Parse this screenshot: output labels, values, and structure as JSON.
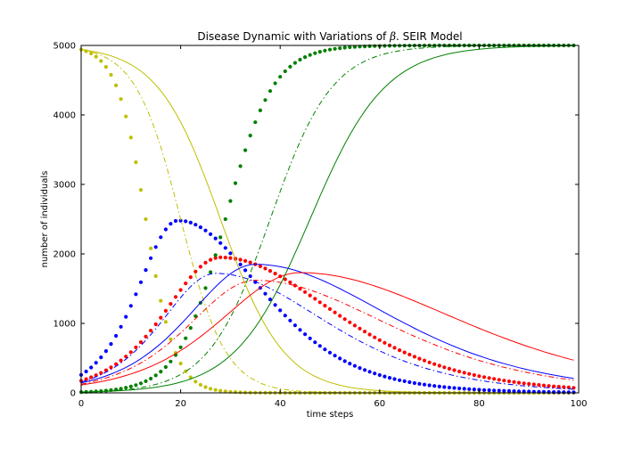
{
  "chart_data": {
    "type": "line",
    "title": "Disease Dynamic with Variations of",
    "title_symbol": "β",
    "title_suffix": ". SEIR Model",
    "xlabel": "time steps",
    "ylabel": "number of individuals",
    "xlim": [
      0,
      100
    ],
    "ylim": [
      0,
      5000
    ],
    "xticks": [
      0,
      20,
      40,
      60,
      80,
      100
    ],
    "yticks": [
      0,
      1000,
      2000,
      3000,
      4000,
      5000
    ],
    "grid": false,
    "legend": "none",
    "compartments": [
      {
        "key": "S",
        "color": "#bfbf00"
      },
      {
        "key": "I",
        "color": "#0000ff"
      },
      {
        "key": "E",
        "color": "#ff0000"
      },
      {
        "key": "R",
        "color": "#008000"
      }
    ],
    "variants": [
      {
        "style": "dotted-markers",
        "peaks": {
          "I": [
            19.5,
            2480
          ],
          "E": [
            28,
            1950
          ]
        },
        "s_mid": 13,
        "r_mid": 29
      },
      {
        "style": "dash-dot",
        "peaks": {
          "I": [
            27,
            1720
          ],
          "E": [
            35,
            1620
          ]
        },
        "s_mid": 20,
        "r_mid": 38
      },
      {
        "style": "solid",
        "peaks": {
          "I": [
            35,
            1850
          ],
          "E": [
            44,
            1730
          ]
        },
        "s_mid": 28,
        "r_mid": 46
      }
    ],
    "total_population": 5000
  }
}
